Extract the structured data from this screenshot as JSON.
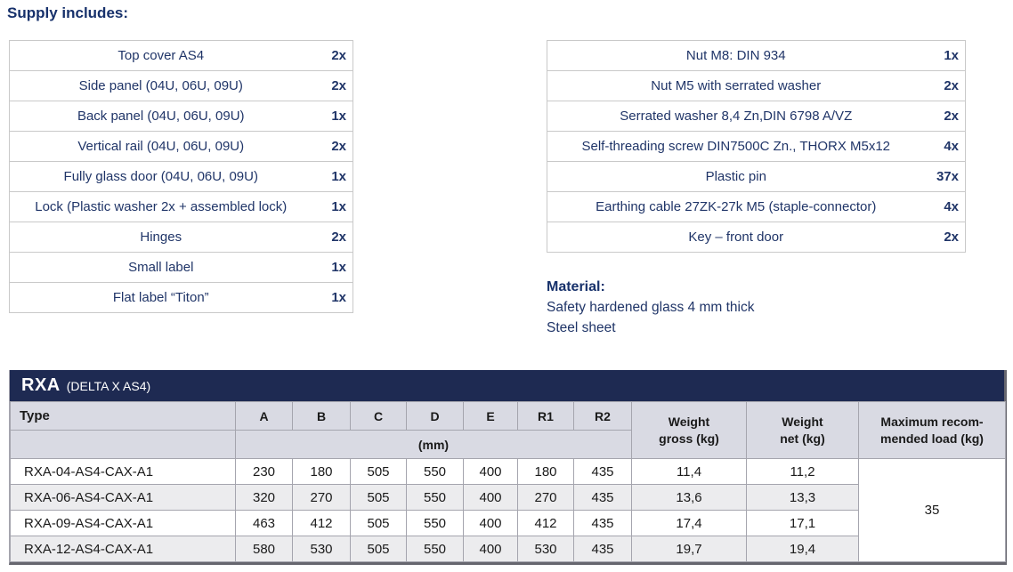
{
  "heading": "Supply includes:",
  "supply_left": {
    "rows": [
      [
        "Top cover AS4",
        "2x"
      ],
      [
        "Side panel (04U, 06U, 09U)",
        "2x"
      ],
      [
        "Back panel (04U, 06U, 09U)",
        "1x"
      ],
      [
        "Vertical rail (04U, 06U, 09U)",
        "2x"
      ],
      [
        "Fully glass door (04U, 06U, 09U)",
        "1x"
      ],
      [
        "Lock (Plastic washer 2x + assembled lock)",
        "1x"
      ],
      [
        "Hinges",
        "2x"
      ],
      [
        "Small label",
        "1x"
      ],
      [
        "Flat label “Titon”",
        "1x"
      ]
    ]
  },
  "supply_right": {
    "rows": [
      [
        "Nut M8: DIN 934",
        "1x"
      ],
      [
        "Nut M5 with serrated washer",
        "2x"
      ],
      [
        "Serrated washer 8,4 Zn,DIN 6798 A/VZ",
        "2x"
      ],
      [
        "Self-threading screw DIN7500C Zn., THORX M5x12",
        "4x"
      ],
      [
        "Plastic pin",
        "37x"
      ],
      [
        "Earthing cable 27ZK-27k M5 (staple-connector)",
        "4x"
      ],
      [
        "Key – front door",
        "2x"
      ]
    ]
  },
  "material": {
    "heading": "Material:",
    "lines": [
      "Safety hardened glass 4 mm thick",
      "Steel sheet"
    ]
  },
  "spec_table": {
    "title": "RXA",
    "subtitle": "(DELTA X AS4)",
    "header": {
      "type": "Type",
      "dims": [
        "A",
        "B",
        "C",
        "D",
        "E",
        "R1",
        "R2"
      ],
      "unit": "(mm)",
      "weight_gross": "Weight\ngross (kg)",
      "weight_net": "Weight\nnet (kg)",
      "max_load": "Maximum recom-\nmended load (kg)"
    },
    "rows": [
      {
        "type": "RXA-04-AS4-CAX-A1",
        "values": [
          "230",
          "180",
          "505",
          "550",
          "400",
          "180",
          "435"
        ],
        "gross": "11,4",
        "net": "11,2"
      },
      {
        "type": "RXA-06-AS4-CAX-A1",
        "values": [
          "320",
          "270",
          "505",
          "550",
          "400",
          "270",
          "435"
        ],
        "gross": "13,6",
        "net": "13,3"
      },
      {
        "type": "RXA-09-AS4-CAX-A1",
        "values": [
          "463",
          "412",
          "505",
          "550",
          "400",
          "412",
          "435"
        ],
        "gross": "17,4",
        "net": "17,1"
      },
      {
        "type": "RXA-12-AS4-CAX-A1",
        "values": [
          "580",
          "530",
          "505",
          "550",
          "400",
          "530",
          "435"
        ],
        "gross": "19,7",
        "net": "19,4"
      }
    ],
    "max_load_value": "35"
  },
  "colors": {
    "text_navy": "#203568",
    "heading_navy": "#17316b",
    "titlebar_navy": "#1e2a52",
    "header_lavender": "#d9dae3",
    "row_alt_gray": "#ececee",
    "border_gray": "#a5a5ae"
  }
}
